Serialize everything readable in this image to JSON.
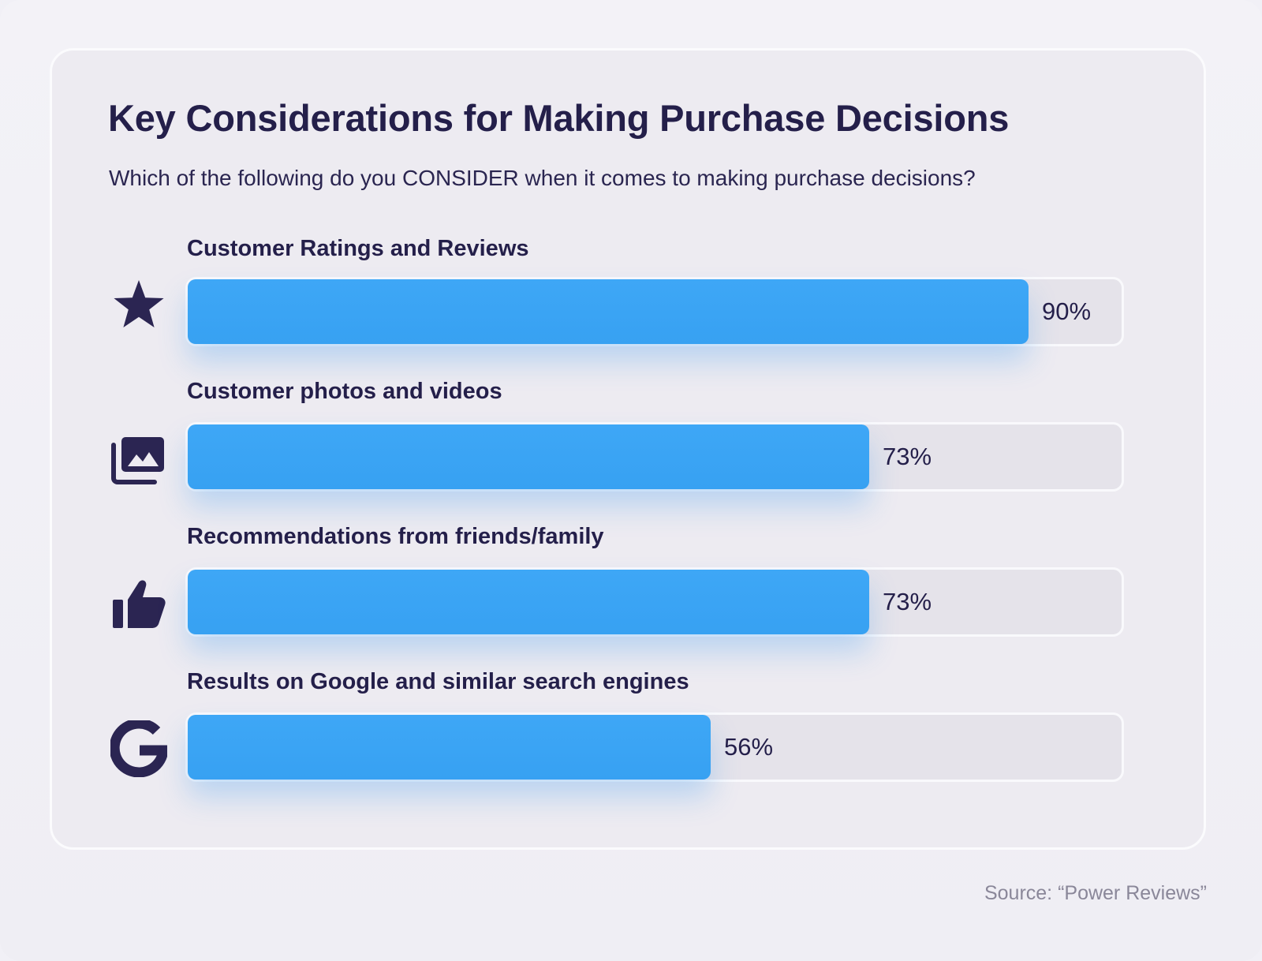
{
  "chart_data": {
    "type": "bar",
    "orientation": "horizontal",
    "title": "Key Considerations for Making Purchase Decisions",
    "subtitle": "Which of the following do you CONSIDER when it comes to making purchase decisions?",
    "categories": [
      "Customer Ratings and Reviews",
      "Customer photos and videos",
      "Recommendations from friends/family",
      "Results on Google and similar search engines"
    ],
    "values": [
      90,
      73,
      73,
      56
    ],
    "value_labels": [
      "90%",
      "73%",
      "73%",
      "56%"
    ],
    "icons": [
      "star-icon",
      "photo-gallery-icon",
      "thumbs-up-icon",
      "google-icon"
    ],
    "xlim": [
      0,
      100
    ],
    "unit": "%"
  },
  "source": "Source: “Power Reviews”",
  "colors": {
    "bar": "#3ba4f5",
    "track": "#e5e3ea",
    "text": "#241f4a",
    "icon": "#2b2552"
  }
}
